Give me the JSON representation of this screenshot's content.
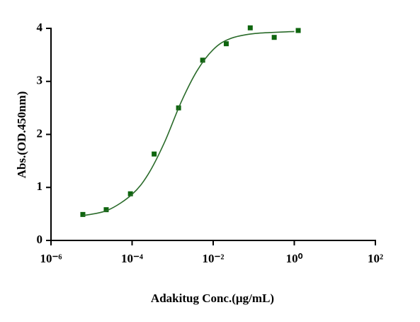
{
  "chart_data": {
    "type": "scatter",
    "x_label": "Adakitug Conc.(µg/mL)",
    "y_label": "Abs.(OD.450nm)",
    "x_scale": "log",
    "xlim": [
      1e-06,
      100
    ],
    "xticks": [
      {
        "value": 1e-06,
        "label": "10⁻⁶"
      },
      {
        "value": 0.0001,
        "label": "10⁻⁴"
      },
      {
        "value": 0.01,
        "label": "10⁻²"
      },
      {
        "value": 1,
        "label": "10⁰"
      },
      {
        "value": 100,
        "label": "10²"
      }
    ],
    "ylim": [
      0,
      4
    ],
    "yticks": [
      0,
      1,
      2,
      3,
      4
    ],
    "series": [
      {
        "type": "scatter",
        "color": "#0e650e",
        "x": [
          6.1e-06,
          2.3e-05,
          9.1e-05,
          0.00035,
          0.0014,
          0.0055,
          0.021,
          0.082,
          0.32,
          1.25
        ],
        "values": [
          0.49,
          0.58,
          0.88,
          1.63,
          2.5,
          3.4,
          3.71,
          4.01,
          3.83,
          3.96
        ]
      },
      {
        "type": "line",
        "color": "#2a6b2a",
        "x": [
          6.3e-06,
          2.5e-05,
          0.0001,
          0.00025,
          0.00063,
          0.0016,
          0.004,
          0.01,
          0.025,
          0.1,
          1
        ],
        "values": [
          0.47,
          0.57,
          0.87,
          1.25,
          1.85,
          2.6,
          3.2,
          3.6,
          3.8,
          3.9,
          3.94
        ]
      }
    ]
  }
}
